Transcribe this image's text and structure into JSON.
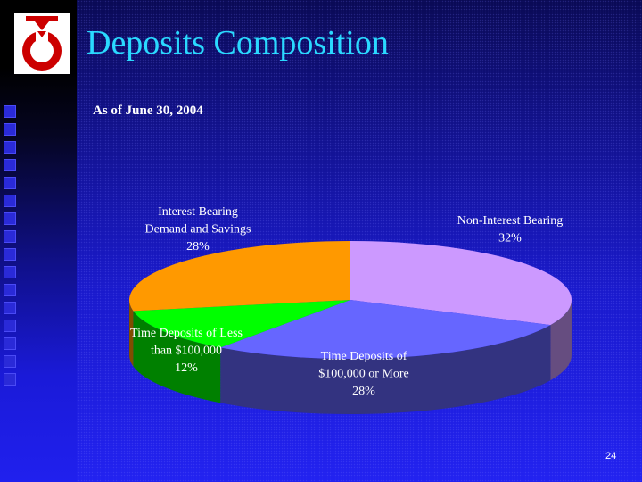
{
  "slide": {
    "title": "Deposits Composition",
    "subtitle": "As of June 30, 2004",
    "page_number": "24"
  },
  "colors": {
    "title": "#2ad9ff",
    "background": "#1c1cee"
  },
  "logo": {
    "icon": "company-logo-red-circle-pennant"
  },
  "chart_data": {
    "type": "pie",
    "style": "3d",
    "title": "",
    "slices": [
      {
        "name": "Non-Interest Bearing",
        "label_lines": [
          "Non-Interest Bearing",
          "32%"
        ],
        "value": 32,
        "color": "#cc99ff"
      },
      {
        "name": "Time Deposits of $100,000 or More",
        "label_lines": [
          "Time Deposits of",
          "$100,000 or More",
          "28%"
        ],
        "value": 28,
        "color": "#6666ff"
      },
      {
        "name": "Time Deposits of Less than $100,000",
        "label_lines": [
          "Time Deposits of Less",
          "than $100,000",
          "12%"
        ],
        "value": 12,
        "color": "#00ff00"
      },
      {
        "name": "Interest Bearing Demand and Savings",
        "label_lines": [
          "Interest Bearing",
          "Demand and Savings",
          "28%"
        ],
        "value": 28,
        "color": "#ff9900"
      }
    ]
  }
}
